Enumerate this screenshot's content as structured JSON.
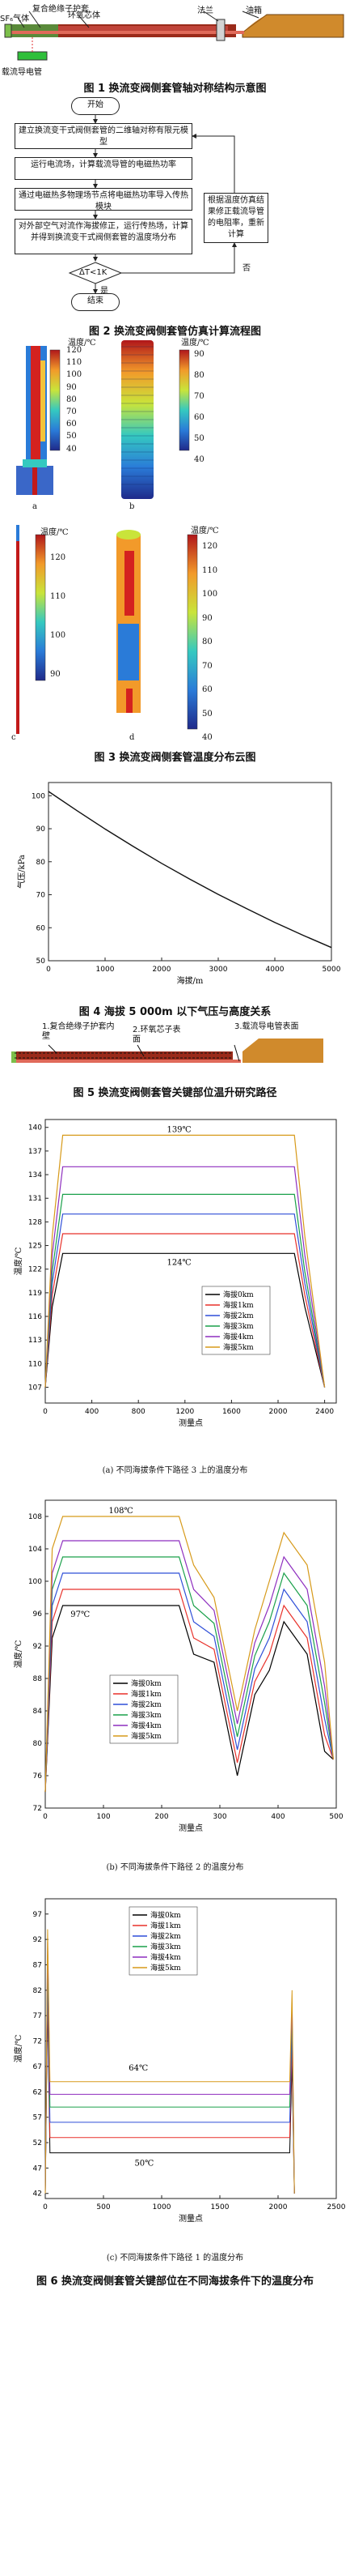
{
  "fig1": {
    "labels": {
      "composite": "复合绝缘子护套",
      "sf6": "SF₆气体",
      "epoxy": "环氧芯体",
      "flange": "法兰",
      "oil_tank": "油箱",
      "conductor": "载流导电管"
    },
    "caption": "图 1  换流变阀侧套管轴对称结构示意图"
  },
  "fig2": {
    "start": "开始",
    "step1": "建立换流变干式阀侧套管的二维轴对称有限元模型",
    "step2": "运行电流场，计算载流导管的电磁热功率",
    "step3": "通过电磁热多物理场节点将电磁热功率导入传热模块",
    "step4": "对外部空气对流作海拔修正，运行传热场，计算并得到换流变干式阀侧套管的温度场分布",
    "side": "根据温度仿真结果修正载流导管的电阻率，重新计算",
    "decision": "ΔT<1K",
    "no": "否",
    "yes": "是",
    "end": "结束",
    "caption": "图 2  换流变阀侧套管仿真计算流程图"
  },
  "fig3": {
    "cb_label": "温度/℃",
    "cb_a_ticks": [
      "120",
      "110",
      "100",
      "90",
      "80",
      "70",
      "60",
      "50",
      "40"
    ],
    "cb_b_ticks": [
      "90",
      "80",
      "70",
      "60",
      "50",
      "40"
    ],
    "cb_c_ticks": [
      "120",
      "110",
      "100",
      "90"
    ],
    "cb_d_ticks": [
      "120",
      "110",
      "100",
      "90",
      "80",
      "70",
      "60",
      "50",
      "40"
    ],
    "sub_a": "a",
    "sub_b": "b",
    "sub_c": "c",
    "sub_d": "d",
    "caption": "图 3  换流变阀侧套管温度分布云图"
  },
  "fig4": {
    "caption": "图 4  海拔 5 000m 以下气压与高度关系"
  },
  "fig5": {
    "path1": "1.复合绝缘子护套内壁",
    "path2": "2.环氧芯子表面",
    "path3": "3.载流导电管表面",
    "caption": "图 5  换流变阀侧套管关键部位温升研究路径"
  },
  "fig6": {
    "caption": "图 6  换流变阀侧套管关键部位在不同海拔条件下的温度分布",
    "sub_a": "(a) 不同海拔条件下路径 3 上的温度分布",
    "sub_b": "(b) 不同海拔条件下路径 2 的温度分布",
    "sub_c": "(c) 不同海拔条件下路径 1 的温度分布"
  },
  "chart_data": [
    {
      "id": "fig4",
      "type": "line",
      "xlabel": "海拔/m",
      "ylabel": "气压/kPa",
      "xlim": [
        0,
        5000
      ],
      "ylim": [
        50,
        104
      ],
      "xticks": [
        0,
        1000,
        2000,
        3000,
        4000,
        5000
      ],
      "yticks": [
        50,
        60,
        70,
        80,
        90,
        100
      ],
      "x": [
        0,
        500,
        1000,
        1500,
        2000,
        2500,
        3000,
        3500,
        4000,
        4500,
        5000
      ],
      "y": [
        101.3,
        95.5,
        89.9,
        84.6,
        79.5,
        74.7,
        70.1,
        65.8,
        61.6,
        57.7,
        54.0
      ]
    },
    {
      "id": "fig6a",
      "type": "line",
      "xlabel": "测量点",
      "ylabel": "温度/℃",
      "xlim": [
        0,
        2500
      ],
      "ylim": [
        105,
        141
      ],
      "xticks": [
        0,
        400,
        800,
        1200,
        1600,
        2000,
        2400
      ],
      "yticks": [
        107,
        110,
        113,
        116,
        119,
        122,
        125,
        128,
        131,
        134,
        137,
        140
      ],
      "annotations": [
        "139℃",
        "124℃"
      ],
      "series": [
        {
          "name": "海拔0km",
          "color": "#000000",
          "plateau": 124
        },
        {
          "name": "海拔1km",
          "color": "#e8312a",
          "plateau": 126.5
        },
        {
          "name": "海拔2km",
          "color": "#2f4fd8",
          "plateau": 129
        },
        {
          "name": "海拔3km",
          "color": "#1aa04a",
          "plateau": 131.5
        },
        {
          "name": "海拔4km",
          "color": "#8e2fbf",
          "plateau": 135
        },
        {
          "name": "海拔5km",
          "color": "#d79a1a",
          "plateau": 139
        }
      ]
    },
    {
      "id": "fig6b",
      "type": "line",
      "xlabel": "测量点",
      "ylabel": "温度/℃",
      "xlim": [
        0,
        500
      ],
      "ylim": [
        72,
        110
      ],
      "xticks": [
        0,
        100,
        200,
        300,
        400,
        500
      ],
      "yticks": [
        72,
        76,
        80,
        84,
        88,
        92,
        96,
        100,
        104,
        108
      ],
      "annotations": [
        "108℃",
        "97℃"
      ],
      "series": [
        {
          "name": "海拔0km",
          "color": "#000000",
          "plateau": 97
        },
        {
          "name": "海拔1km",
          "color": "#e8312a",
          "plateau": 99
        },
        {
          "name": "海拔2km",
          "color": "#2f4fd8",
          "plateau": 101
        },
        {
          "name": "海拔3km",
          "color": "#1aa04a",
          "plateau": 103
        },
        {
          "name": "海拔4km",
          "color": "#8e2fbf",
          "plateau": 105
        },
        {
          "name": "海拔5km",
          "color": "#d79a1a",
          "plateau": 108
        }
      ]
    },
    {
      "id": "fig6c",
      "type": "line",
      "xlabel": "测量点",
      "ylabel": "温度/℃",
      "xlim": [
        0,
        2500
      ],
      "ylim": [
        41,
        100
      ],
      "xticks": [
        0,
        500,
        1000,
        1500,
        2000,
        2500
      ],
      "yticks": [
        42,
        47,
        52,
        57,
        62,
        67,
        72,
        77,
        82,
        87,
        92,
        97
      ],
      "annotations": [
        "64℃",
        "50℃"
      ],
      "series": [
        {
          "name": "海拔0km",
          "color": "#000000",
          "plateau": 50
        },
        {
          "name": "海拔1km",
          "color": "#e8312a",
          "plateau": 53
        },
        {
          "name": "海拔2km",
          "color": "#2f4fd8",
          "plateau": 56
        },
        {
          "name": "海拔3km",
          "color": "#1aa04a",
          "plateau": 59
        },
        {
          "name": "海拔4km",
          "color": "#8e2fbf",
          "plateau": 61.5
        },
        {
          "name": "海拔5km",
          "color": "#d79a1a",
          "plateau": 64
        }
      ]
    }
  ]
}
